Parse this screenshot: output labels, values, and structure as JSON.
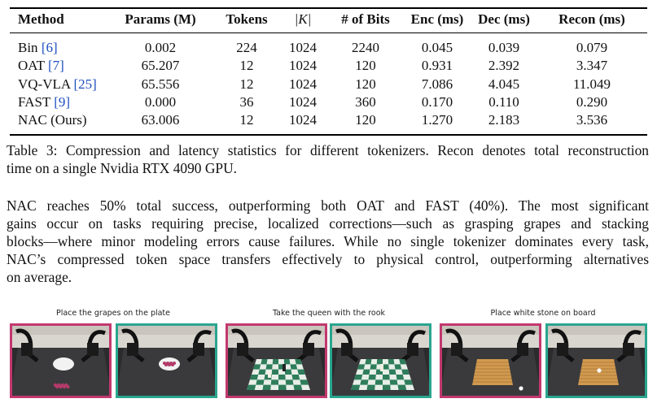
{
  "table": {
    "header": [
      "Method",
      "Params (M)",
      "Tokens",
      "|K|",
      "# of Bits",
      "Enc (ms)",
      "Dec (ms)",
      "Recon (ms)"
    ],
    "rows": [
      {
        "method": "Bin",
        "ref": "[6]",
        "cells": [
          "0.002",
          "224",
          "1024",
          "2240",
          "0.045",
          "0.039",
          "0.079"
        ]
      },
      {
        "method": "OAT",
        "ref": "[7]",
        "cells": [
          "65.207",
          "12",
          "1024",
          "120",
          "0.931",
          "2.392",
          "3.347"
        ]
      },
      {
        "method": "VQ-VLA",
        "ref": "[25]",
        "cells": [
          "65.556",
          "12",
          "1024",
          "120",
          "7.086",
          "4.045",
          "11.049"
        ]
      },
      {
        "method": "FAST",
        "ref": "[9]",
        "cells": [
          "0.000",
          "36",
          "1024",
          "360",
          "0.170",
          "0.110",
          "0.290"
        ]
      },
      {
        "method": "NAC (Ours)",
        "ref": null,
        "cells": [
          "63.006",
          "12",
          "1024",
          "120",
          "1.270",
          "2.183",
          "3.536"
        ]
      }
    ]
  },
  "caption": [
    "Table 3: Compression and latency statistics for different tokenizers. Recon denotes total reconstruction",
    "time on a single Nvidia RTX 4090 GPU."
  ],
  "paragraph": [
    "NAC reaches 50% total success, outperforming both OAT and FAST (40%). The most significant",
    "gains occur on tasks requiring precise, localized corrections—such as grasping grapes and stacking",
    "blocks—where minor modeling errors cause failures. While no single tokenizer dominates every task,",
    "NAC’s compressed token space transfers effectively to physical control, outperforming alternatives",
    "on average."
  ],
  "figure": {
    "panels": [
      {
        "title": "Place the grapes on the plate",
        "scene": "grapes"
      },
      {
        "title": "Take the queen with the rook",
        "scene": "chess"
      },
      {
        "title": "Place white stone on board",
        "scene": "go"
      }
    ]
  }
}
